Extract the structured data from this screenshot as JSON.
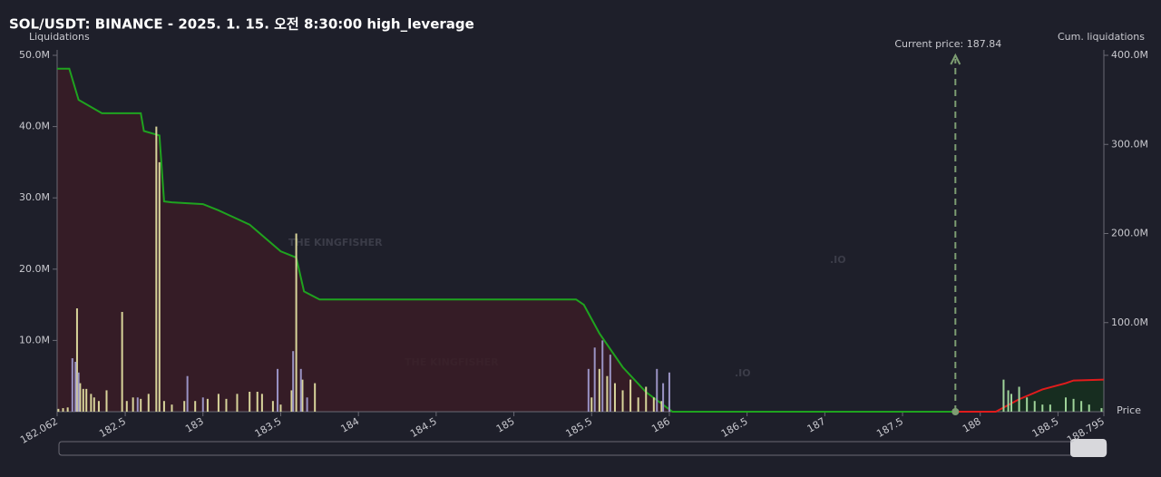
{
  "chart_data": {
    "type": "liquidation",
    "title": "SOL/USDT: BINANCE - 2025. 1. 15. 오전 8:30:00 high_leverage",
    "y_label": "Liquidations",
    "y2_label": "Cum. liquidations",
    "x_label": "Price",
    "watermark": {
      "text": "THE KINGFISHER",
      "suffix": ".IO"
    },
    "current_price": {
      "value": 187.84,
      "label": "Current price: 187.84"
    },
    "xlim": [
      182.062,
      188.795
    ],
    "xticks": [
      182.062,
      182.5,
      183,
      183.5,
      184,
      184.5,
      185,
      185.5,
      186,
      186.5,
      187,
      187.5,
      188,
      188.5,
      188.795
    ],
    "ylim": [
      0,
      50
    ],
    "yticks": [
      {
        "value": 10,
        "label": "10.0M"
      },
      {
        "value": 20,
        "label": "20.0M"
      },
      {
        "value": 30,
        "label": "30.0M"
      },
      {
        "value": 40,
        "label": "40.0M"
      },
      {
        "value": 50,
        "label": "50.0M"
      }
    ],
    "y2lim": [
      0,
      400
    ],
    "y2ticks": [
      {
        "value": 100,
        "label": "100.0M"
      },
      {
        "value": 200,
        "label": "200.0M"
      },
      {
        "value": 300,
        "label": "300.0M"
      },
      {
        "value": 400,
        "label": "400.0M"
      }
    ],
    "series": [
      {
        "type": "bar",
        "color": "#d8d49a",
        "x": [
          182.07,
          182.1,
          182.13,
          182.19,
          182.21,
          182.23,
          182.25,
          182.28,
          182.3,
          182.33,
          182.38,
          182.48,
          182.51,
          182.55,
          182.6,
          182.65,
          182.7,
          182.72,
          182.75,
          182.8,
          182.88,
          182.95,
          183.03,
          183.1,
          183.15,
          183.22,
          183.3,
          183.35,
          183.38,
          183.45,
          183.5,
          183.57,
          183.6,
          183.64,
          183.72,
          185.5,
          185.55,
          185.6,
          185.65,
          185.7,
          185.75,
          185.8,
          185.85,
          185.9,
          185.95,
          186.0
        ],
        "values": [
          0.4,
          0.5,
          0.6,
          14.5,
          4,
          3.2,
          3.2,
          2.5,
          2,
          1.5,
          3,
          14,
          1.5,
          2,
          1.8,
          2.5,
          40,
          35,
          1.5,
          1,
          1.5,
          1.5,
          1.8,
          2.5,
          1.8,
          2.5,
          2.8,
          2.8,
          2.5,
          1.5,
          1,
          3,
          25,
          4.5,
          4,
          2,
          6,
          5,
          4,
          3,
          4.5,
          2,
          3.5,
          2,
          1.5,
          1.5
        ]
      },
      {
        "type": "bar",
        "color": "#9a93c4",
        "x": [
          182.16,
          182.18,
          182.2,
          182.58,
          182.9,
          183.0,
          183.48,
          183.58,
          183.63,
          183.67,
          185.48,
          185.52,
          185.57,
          185.62,
          185.92,
          185.96,
          186.0
        ],
        "values": [
          7.5,
          7,
          5.5,
          2,
          5,
          2,
          6,
          8.5,
          6,
          2,
          6,
          9,
          10,
          8,
          6,
          4,
          5.5
        ]
      },
      {
        "type": "bar",
        "color": "#9fd49a",
        "x": [
          188.15,
          188.18,
          188.2,
          188.25,
          188.3,
          188.35,
          188.4,
          188.45,
          188.55,
          188.6,
          188.65,
          188.7,
          188.78
        ],
        "values": [
          4.5,
          3,
          2.5,
          3.5,
          2,
          1.5,
          1,
          1,
          2,
          1.8,
          1.5,
          1,
          0.5
        ]
      },
      {
        "type": "line",
        "axis": "y2",
        "color": "#1fa31f",
        "fill_color": "#3a1c26",
        "x": [
          182.062,
          182.14,
          182.2,
          182.35,
          182.4,
          182.6,
          182.62,
          182.72,
          182.75,
          182.8,
          183.0,
          183.1,
          183.3,
          183.5,
          183.6,
          183.65,
          183.75,
          185.4,
          185.45,
          185.55,
          185.7,
          185.85,
          186.02,
          187.84
        ],
        "values": [
          385,
          385,
          350,
          335,
          335,
          335,
          315,
          310,
          236,
          235,
          233,
          226,
          210,
          180,
          173,
          135,
          126,
          126,
          120,
          88,
          50,
          22,
          0,
          0
        ]
      },
      {
        "type": "line",
        "axis": "y2",
        "color": "#e01c1c",
        "fill_color": "#16301f",
        "x": [
          187.84,
          188.1,
          188.25,
          188.4,
          188.55,
          188.6,
          188.795
        ],
        "values": [
          0,
          0,
          14,
          25,
          32,
          35,
          36
        ]
      }
    ]
  }
}
